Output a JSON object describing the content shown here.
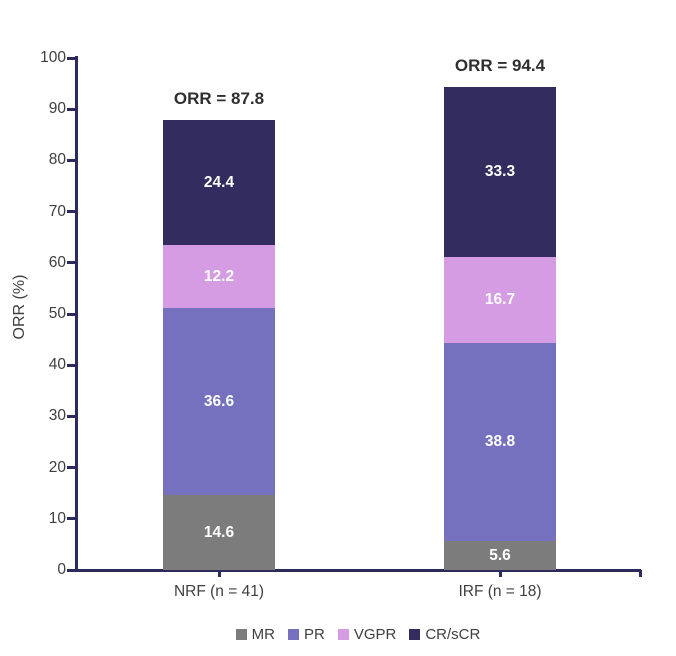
{
  "chart_data": {
    "type": "bar",
    "stacked": true,
    "title": "",
    "ylabel": "ORR (%)",
    "xlabel": "",
    "ylim": [
      0,
      100
    ],
    "ytick_step": 10,
    "grid": false,
    "legend_position": "bottom",
    "categories": [
      "NRF (n = 41)",
      "IRF (n = 18)"
    ],
    "series": [
      {
        "name": "MR",
        "color": "#7c7c7c",
        "values": [
          14.6,
          5.6
        ]
      },
      {
        "name": "PR",
        "color": "#7571be",
        "values": [
          36.6,
          38.8
        ]
      },
      {
        "name": "VGPR",
        "color": "#d59ce4",
        "values": [
          12.2,
          16.7
        ]
      },
      {
        "name": "CR/sCR",
        "color": "#322c5f",
        "values": [
          24.4,
          33.3
        ]
      }
    ],
    "totals": [
      87.8,
      94.4
    ],
    "orr_labels": [
      "ORR = 87.8",
      "ORR = 94.4"
    ],
    "axis_color": "#2d2a5c",
    "tick_text_color": "#3f3f3f",
    "orr_text_color": "#2f2f2f",
    "bar_value_text_color": "#ffffff"
  }
}
